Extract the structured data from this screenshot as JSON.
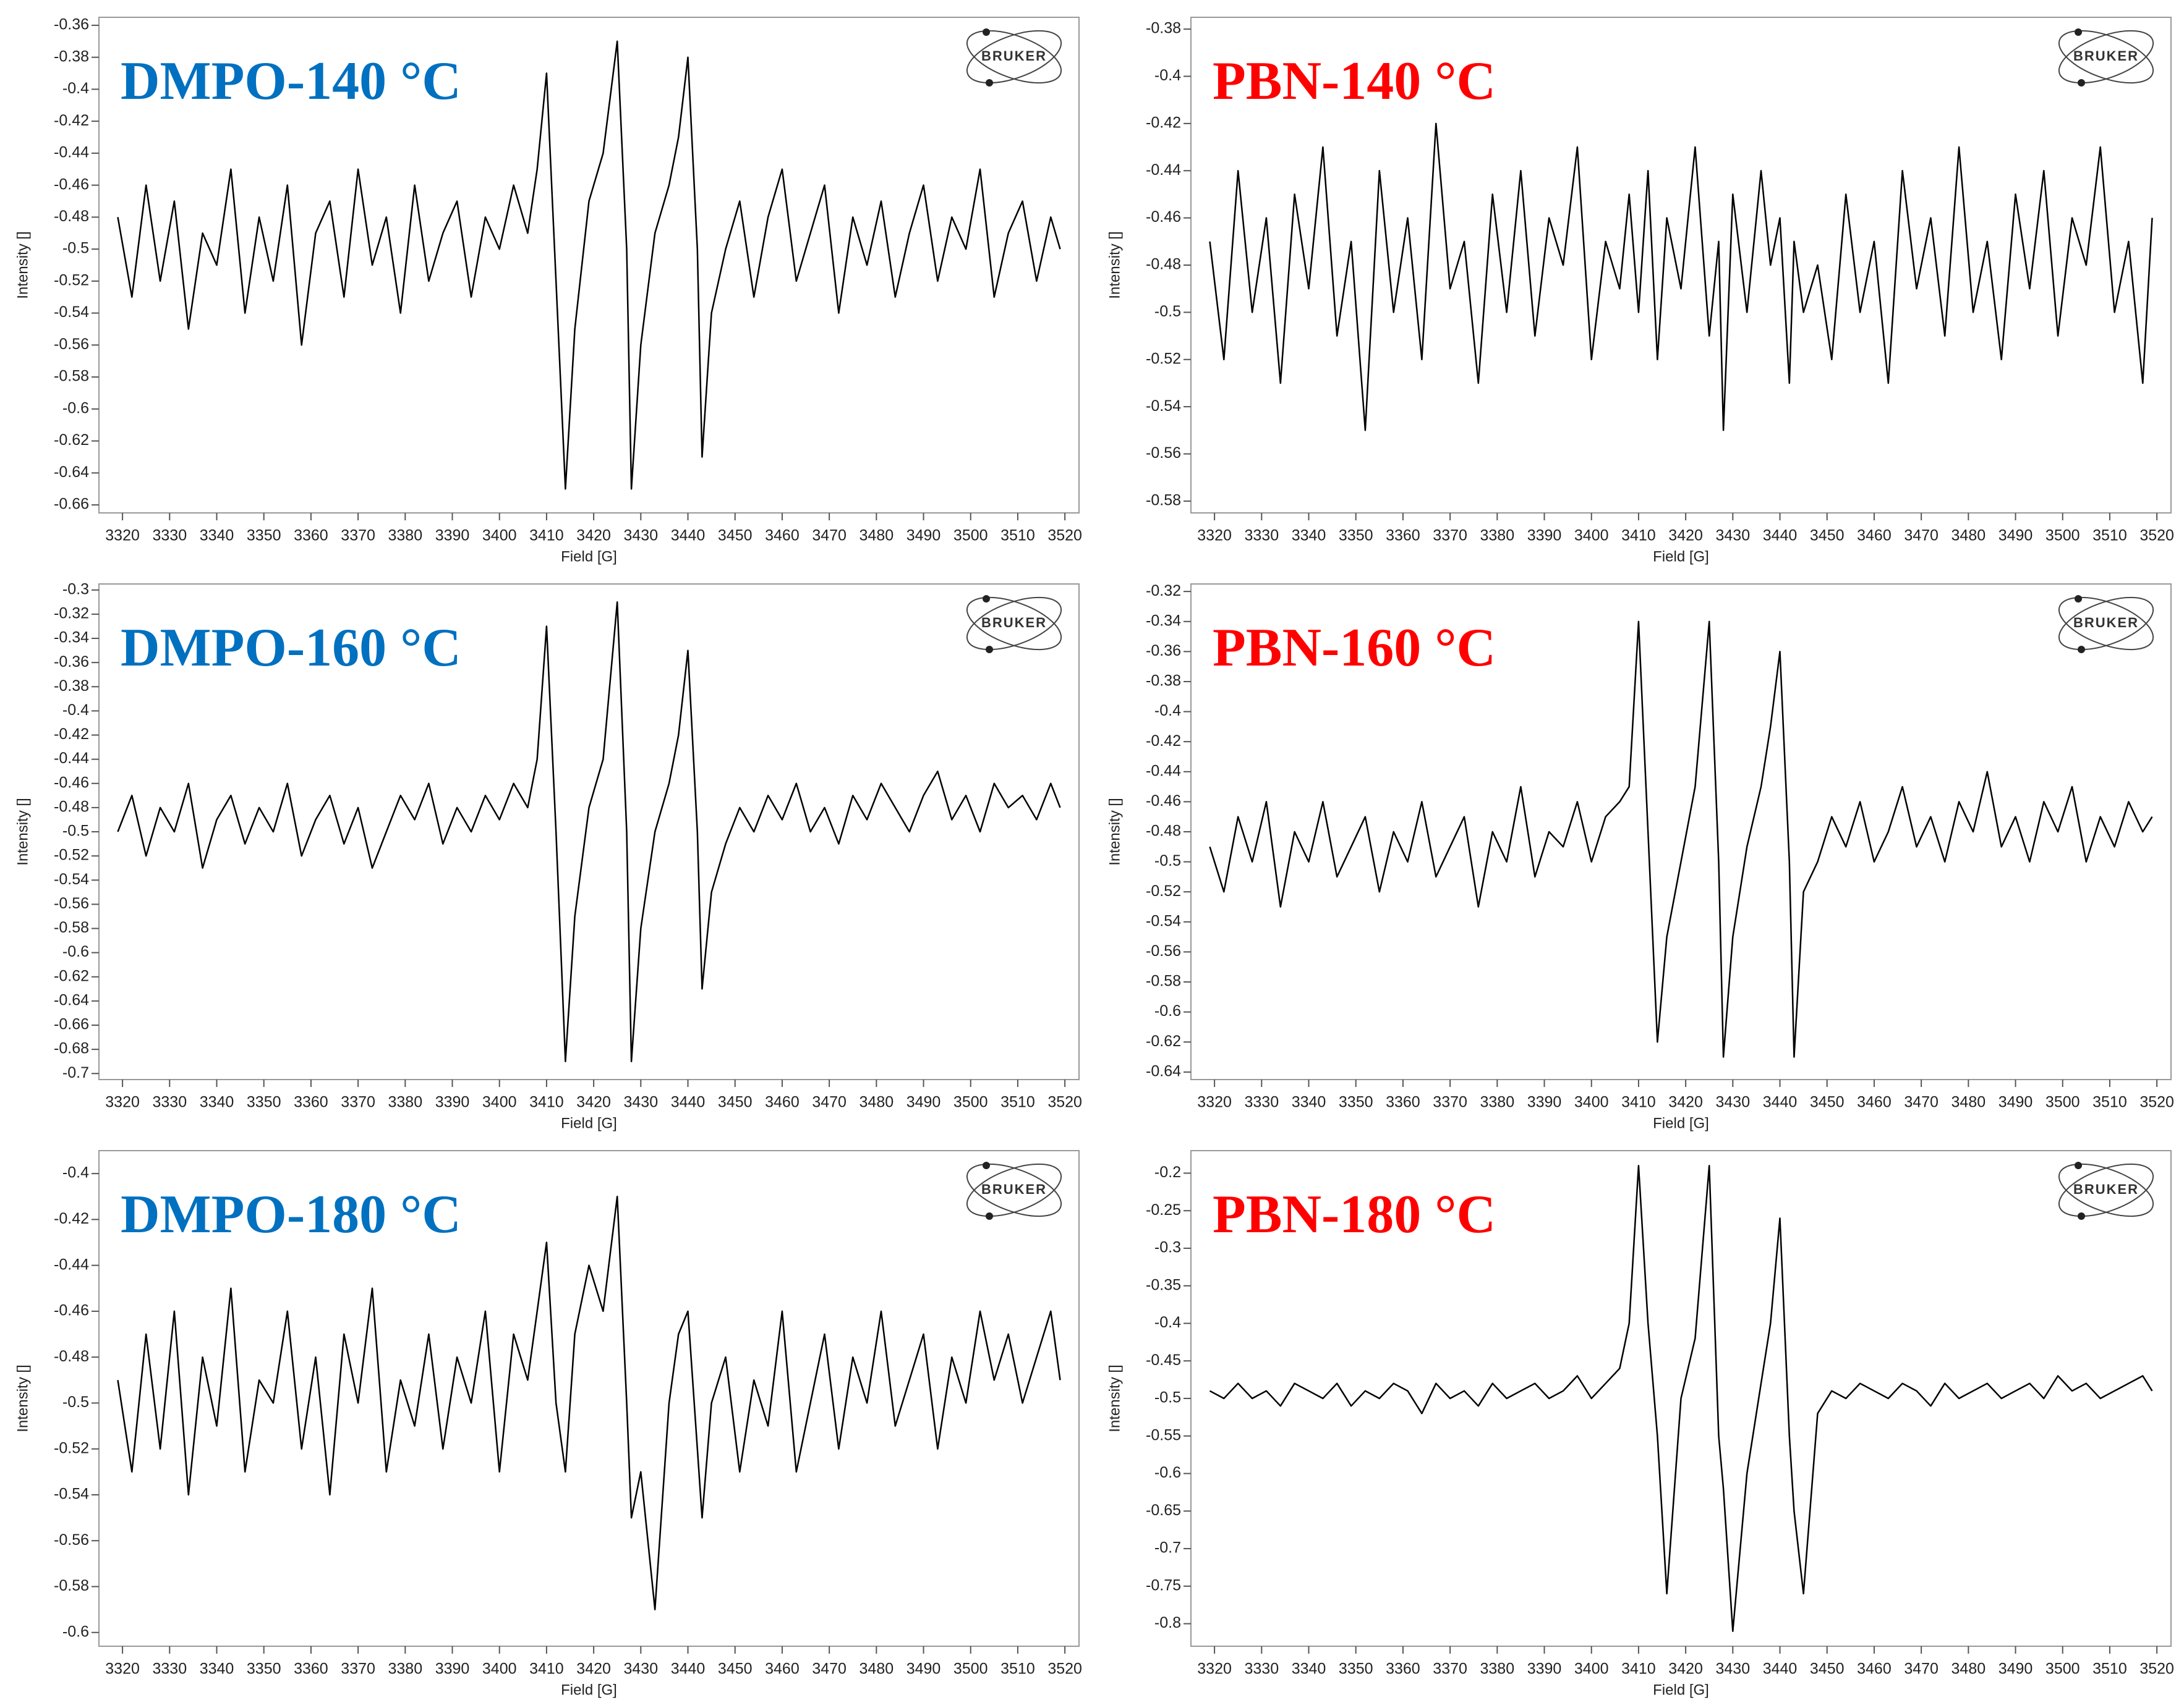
{
  "chart_data": [
    {
      "type": "line",
      "title": "DMPO-140 °C",
      "title_color": "#0070c0",
      "logo": "BRUKER",
      "xlabel": "Field [G]",
      "ylabel": "Intensity []",
      "color": "#000000",
      "x": [
        3319,
        3322,
        3325,
        3328,
        3331,
        3334,
        3337,
        3340,
        3343,
        3346,
        3349,
        3352,
        3355,
        3358,
        3361,
        3364,
        3367,
        3370,
        3373,
        3376,
        3379,
        3382,
        3385,
        3388,
        3391,
        3394,
        3397,
        3400,
        3403,
        3406,
        3408,
        3410,
        3412,
        3414,
        3416,
        3419,
        3422,
        3425,
        3427,
        3428,
        3430,
        3433,
        3436,
        3438,
        3440,
        3442,
        3443,
        3445,
        3448,
        3451,
        3454,
        3457,
        3460,
        3463,
        3466,
        3469,
        3472,
        3475,
        3478,
        3481,
        3484,
        3487,
        3490,
        3493,
        3496,
        3499,
        3502,
        3505,
        3508,
        3511,
        3514,
        3517,
        3519
      ],
      "values": [
        -0.48,
        -0.53,
        -0.46,
        -0.52,
        -0.47,
        -0.55,
        -0.49,
        -0.51,
        -0.45,
        -0.54,
        -0.48,
        -0.52,
        -0.46,
        -0.56,
        -0.49,
        -0.47,
        -0.53,
        -0.45,
        -0.51,
        -0.48,
        -0.54,
        -0.46,
        -0.52,
        -0.49,
        -0.47,
        -0.53,
        -0.48,
        -0.5,
        -0.46,
        -0.49,
        -0.45,
        -0.39,
        -0.52,
        -0.65,
        -0.55,
        -0.47,
        -0.44,
        -0.37,
        -0.5,
        -0.65,
        -0.56,
        -0.49,
        -0.46,
        -0.43,
        -0.38,
        -0.5,
        -0.63,
        -0.54,
        -0.5,
        -0.47,
        -0.53,
        -0.48,
        -0.45,
        -0.52,
        -0.49,
        -0.46,
        -0.54,
        -0.48,
        -0.51,
        -0.47,
        -0.53,
        -0.49,
        -0.46,
        -0.52,
        -0.48,
        -0.5,
        -0.45,
        -0.53,
        -0.49,
        -0.47,
        -0.52,
        -0.48,
        -0.5
      ],
      "xlim": [
        3315,
        3523
      ],
      "xticks": [
        3320,
        3330,
        3340,
        3350,
        3360,
        3370,
        3380,
        3390,
        3400,
        3410,
        3420,
        3430,
        3440,
        3450,
        3460,
        3470,
        3480,
        3490,
        3500,
        3510,
        3520
      ],
      "ylim": [
        -0.665,
        -0.355
      ],
      "yticks": [
        -0.36,
        -0.38,
        -0.4,
        -0.42,
        -0.44,
        -0.46,
        -0.48,
        -0.5,
        -0.52,
        -0.54,
        -0.56,
        -0.58,
        -0.6,
        -0.62,
        -0.64,
        -0.66
      ]
    },
    {
      "type": "line",
      "title": "PBN-140 °C",
      "title_color": "#ff0000",
      "logo": "BRUKER",
      "xlabel": "Field [G]",
      "ylabel": "Intensity []",
      "color": "#000000",
      "x": [
        3319,
        3322,
        3325,
        3328,
        3331,
        3334,
        3337,
        3340,
        3343,
        3346,
        3349,
        3352,
        3355,
        3358,
        3361,
        3364,
        3367,
        3370,
        3373,
        3376,
        3379,
        3382,
        3385,
        3388,
        3391,
        3394,
        3397,
        3400,
        3403,
        3406,
        3408,
        3410,
        3412,
        3414,
        3416,
        3419,
        3422,
        3425,
        3427,
        3428,
        3430,
        3433,
        3436,
        3438,
        3440,
        3442,
        3443,
        3445,
        3448,
        3451,
        3454,
        3457,
        3460,
        3463,
        3466,
        3469,
        3472,
        3475,
        3478,
        3481,
        3484,
        3487,
        3490,
        3493,
        3496,
        3499,
        3502,
        3505,
        3508,
        3511,
        3514,
        3517,
        3519
      ],
      "values": [
        -0.47,
        -0.52,
        -0.44,
        -0.5,
        -0.46,
        -0.53,
        -0.45,
        -0.49,
        -0.43,
        -0.51,
        -0.47,
        -0.55,
        -0.44,
        -0.5,
        -0.46,
        -0.52,
        -0.42,
        -0.49,
        -0.47,
        -0.53,
        -0.45,
        -0.5,
        -0.44,
        -0.51,
        -0.46,
        -0.48,
        -0.43,
        -0.52,
        -0.47,
        -0.49,
        -0.45,
        -0.5,
        -0.44,
        -0.52,
        -0.46,
        -0.49,
        -0.43,
        -0.51,
        -0.47,
        -0.55,
        -0.45,
        -0.5,
        -0.44,
        -0.48,
        -0.46,
        -0.53,
        -0.47,
        -0.5,
        -0.48,
        -0.52,
        -0.45,
        -0.5,
        -0.47,
        -0.53,
        -0.44,
        -0.49,
        -0.46,
        -0.51,
        -0.43,
        -0.5,
        -0.47,
        -0.52,
        -0.45,
        -0.49,
        -0.44,
        -0.51,
        -0.46,
        -0.48,
        -0.43,
        -0.5,
        -0.47,
        -0.53,
        -0.46
      ],
      "xlim": [
        3315,
        3523
      ],
      "xticks": [
        3320,
        3330,
        3340,
        3350,
        3360,
        3370,
        3380,
        3390,
        3400,
        3410,
        3420,
        3430,
        3440,
        3450,
        3460,
        3470,
        3480,
        3490,
        3500,
        3510,
        3520
      ],
      "ylim": [
        -0.585,
        -0.375
      ],
      "yticks": [
        -0.38,
        -0.4,
        -0.42,
        -0.44,
        -0.46,
        -0.48,
        -0.5,
        -0.52,
        -0.54,
        -0.56,
        -0.58
      ]
    },
    {
      "type": "line",
      "title": "DMPO-160 °C",
      "title_color": "#0070c0",
      "logo": "BRUKER",
      "xlabel": "Field [G]",
      "ylabel": "Intensity []",
      "color": "#000000",
      "x": [
        3319,
        3322,
        3325,
        3328,
        3331,
        3334,
        3337,
        3340,
        3343,
        3346,
        3349,
        3352,
        3355,
        3358,
        3361,
        3364,
        3367,
        3370,
        3373,
        3376,
        3379,
        3382,
        3385,
        3388,
        3391,
        3394,
        3397,
        3400,
        3403,
        3406,
        3408,
        3410,
        3412,
        3414,
        3416,
        3419,
        3422,
        3425,
        3427,
        3428,
        3430,
        3433,
        3436,
        3438,
        3440,
        3442,
        3443,
        3445,
        3448,
        3451,
        3454,
        3457,
        3460,
        3463,
        3466,
        3469,
        3472,
        3475,
        3478,
        3481,
        3484,
        3487,
        3490,
        3493,
        3496,
        3499,
        3502,
        3505,
        3508,
        3511,
        3514,
        3517,
        3519
      ],
      "values": [
        -0.5,
        -0.47,
        -0.52,
        -0.48,
        -0.5,
        -0.46,
        -0.53,
        -0.49,
        -0.47,
        -0.51,
        -0.48,
        -0.5,
        -0.46,
        -0.52,
        -0.49,
        -0.47,
        -0.51,
        -0.48,
        -0.53,
        -0.5,
        -0.47,
        -0.49,
        -0.46,
        -0.51,
        -0.48,
        -0.5,
        -0.47,
        -0.49,
        -0.46,
        -0.48,
        -0.44,
        -0.33,
        -0.5,
        -0.69,
        -0.57,
        -0.48,
        -0.44,
        -0.31,
        -0.5,
        -0.69,
        -0.58,
        -0.5,
        -0.46,
        -0.42,
        -0.35,
        -0.5,
        -0.63,
        -0.55,
        -0.51,
        -0.48,
        -0.5,
        -0.47,
        -0.49,
        -0.46,
        -0.5,
        -0.48,
        -0.51,
        -0.47,
        -0.49,
        -0.46,
        -0.48,
        -0.5,
        -0.47,
        -0.45,
        -0.49,
        -0.47,
        -0.5,
        -0.46,
        -0.48,
        -0.47,
        -0.49,
        -0.46,
        -0.48
      ],
      "xlim": [
        3315,
        3523
      ],
      "xticks": [
        3320,
        3330,
        3340,
        3350,
        3360,
        3370,
        3380,
        3390,
        3400,
        3410,
        3420,
        3430,
        3440,
        3450,
        3460,
        3470,
        3480,
        3490,
        3500,
        3510,
        3520
      ],
      "ylim": [
        -0.705,
        -0.295
      ],
      "yticks": [
        -0.3,
        -0.32,
        -0.34,
        -0.36,
        -0.38,
        -0.4,
        -0.42,
        -0.44,
        -0.46,
        -0.48,
        -0.5,
        -0.52,
        -0.54,
        -0.56,
        -0.58,
        -0.6,
        -0.62,
        -0.64,
        -0.66,
        -0.68,
        -0.7
      ]
    },
    {
      "type": "line",
      "title": "PBN-160 °C",
      "title_color": "#ff0000",
      "logo": "BRUKER",
      "xlabel": "Field [G]",
      "ylabel": "Intensity []",
      "color": "#000000",
      "x": [
        3319,
        3322,
        3325,
        3328,
        3331,
        3334,
        3337,
        3340,
        3343,
        3346,
        3349,
        3352,
        3355,
        3358,
        3361,
        3364,
        3367,
        3370,
        3373,
        3376,
        3379,
        3382,
        3385,
        3388,
        3391,
        3394,
        3397,
        3400,
        3403,
        3406,
        3408,
        3410,
        3412,
        3414,
        3416,
        3419,
        3422,
        3425,
        3427,
        3428,
        3430,
        3433,
        3436,
        3438,
        3440,
        3442,
        3443,
        3445,
        3448,
        3451,
        3454,
        3457,
        3460,
        3463,
        3466,
        3469,
        3472,
        3475,
        3478,
        3481,
        3484,
        3487,
        3490,
        3493,
        3496,
        3499,
        3502,
        3505,
        3508,
        3511,
        3514,
        3517,
        3519
      ],
      "values": [
        -0.49,
        -0.52,
        -0.47,
        -0.5,
        -0.46,
        -0.53,
        -0.48,
        -0.5,
        -0.46,
        -0.51,
        -0.49,
        -0.47,
        -0.52,
        -0.48,
        -0.5,
        -0.46,
        -0.51,
        -0.49,
        -0.47,
        -0.53,
        -0.48,
        -0.5,
        -0.45,
        -0.51,
        -0.48,
        -0.49,
        -0.46,
        -0.5,
        -0.47,
        -0.46,
        -0.45,
        -0.34,
        -0.48,
        -0.62,
        -0.55,
        -0.5,
        -0.45,
        -0.34,
        -0.5,
        -0.63,
        -0.55,
        -0.49,
        -0.45,
        -0.41,
        -0.36,
        -0.5,
        -0.63,
        -0.52,
        -0.5,
        -0.47,
        -0.49,
        -0.46,
        -0.5,
        -0.48,
        -0.45,
        -0.49,
        -0.47,
        -0.5,
        -0.46,
        -0.48,
        -0.44,
        -0.49,
        -0.47,
        -0.5,
        -0.46,
        -0.48,
        -0.45,
        -0.5,
        -0.47,
        -0.49,
        -0.46,
        -0.48,
        -0.47
      ],
      "xlim": [
        3315,
        3523
      ],
      "xticks": [
        3320,
        3330,
        3340,
        3350,
        3360,
        3370,
        3380,
        3390,
        3400,
        3410,
        3420,
        3430,
        3440,
        3450,
        3460,
        3470,
        3480,
        3490,
        3500,
        3510,
        3520
      ],
      "ylim": [
        -0.645,
        -0.315
      ],
      "yticks": [
        -0.32,
        -0.34,
        -0.36,
        -0.38,
        -0.4,
        -0.42,
        -0.44,
        -0.46,
        -0.48,
        -0.5,
        -0.52,
        -0.54,
        -0.56,
        -0.58,
        -0.6,
        -0.62,
        -0.64
      ]
    },
    {
      "type": "line",
      "title": "DMPO-180 °C",
      "title_color": "#0070c0",
      "logo": "BRUKER",
      "xlabel": "Field [G]",
      "ylabel": "Intensity []",
      "color": "#000000",
      "x": [
        3319,
        3322,
        3325,
        3328,
        3331,
        3334,
        3337,
        3340,
        3343,
        3346,
        3349,
        3352,
        3355,
        3358,
        3361,
        3364,
        3367,
        3370,
        3373,
        3376,
        3379,
        3382,
        3385,
        3388,
        3391,
        3394,
        3397,
        3400,
        3403,
        3406,
        3408,
        3410,
        3412,
        3414,
        3416,
        3419,
        3422,
        3425,
        3427,
        3428,
        3430,
        3433,
        3436,
        3438,
        3440,
        3442,
        3443,
        3445,
        3448,
        3451,
        3454,
        3457,
        3460,
        3463,
        3466,
        3469,
        3472,
        3475,
        3478,
        3481,
        3484,
        3487,
        3490,
        3493,
        3496,
        3499,
        3502,
        3505,
        3508,
        3511,
        3514,
        3517,
        3519
      ],
      "values": [
        -0.49,
        -0.53,
        -0.47,
        -0.52,
        -0.46,
        -0.54,
        -0.48,
        -0.51,
        -0.45,
        -0.53,
        -0.49,
        -0.5,
        -0.46,
        -0.52,
        -0.48,
        -0.54,
        -0.47,
        -0.5,
        -0.45,
        -0.53,
        -0.49,
        -0.51,
        -0.47,
        -0.52,
        -0.48,
        -0.5,
        -0.46,
        -0.53,
        -0.47,
        -0.49,
        -0.46,
        -0.43,
        -0.5,
        -0.53,
        -0.47,
        -0.44,
        -0.46,
        -0.41,
        -0.5,
        -0.55,
        -0.53,
        -0.59,
        -0.5,
        -0.47,
        -0.46,
        -0.52,
        -0.55,
        -0.5,
        -0.48,
        -0.53,
        -0.49,
        -0.51,
        -0.46,
        -0.53,
        -0.5,
        -0.47,
        -0.52,
        -0.48,
        -0.5,
        -0.46,
        -0.51,
        -0.49,
        -0.47,
        -0.52,
        -0.48,
        -0.5,
        -0.46,
        -0.49,
        -0.47,
        -0.5,
        -0.48,
        -0.46,
        -0.49
      ],
      "xlim": [
        3315,
        3523
      ],
      "xticks": [
        3320,
        3330,
        3340,
        3350,
        3360,
        3370,
        3380,
        3390,
        3400,
        3410,
        3420,
        3430,
        3440,
        3450,
        3460,
        3470,
        3480,
        3490,
        3500,
        3510,
        3520
      ],
      "ylim": [
        -0.606,
        -0.39
      ],
      "yticks": [
        -0.4,
        -0.42,
        -0.44,
        -0.46,
        -0.48,
        -0.5,
        -0.52,
        -0.54,
        -0.56,
        -0.58,
        -0.6
      ]
    },
    {
      "type": "line",
      "title": "PBN-180 °C",
      "title_color": "#ff0000",
      "logo": "BRUKER",
      "xlabel": "Field [G]",
      "ylabel": "Intensity []",
      "color": "#000000",
      "x": [
        3319,
        3322,
        3325,
        3328,
        3331,
        3334,
        3337,
        3340,
        3343,
        3346,
        3349,
        3352,
        3355,
        3358,
        3361,
        3364,
        3367,
        3370,
        3373,
        3376,
        3379,
        3382,
        3385,
        3388,
        3391,
        3394,
        3397,
        3400,
        3403,
        3406,
        3408,
        3410,
        3412,
        3414,
        3416,
        3419,
        3422,
        3425,
        3427,
        3428,
        3430,
        3433,
        3436,
        3438,
        3440,
        3442,
        3443,
        3445,
        3448,
        3451,
        3454,
        3457,
        3460,
        3463,
        3466,
        3469,
        3472,
        3475,
        3478,
        3481,
        3484,
        3487,
        3490,
        3493,
        3496,
        3499,
        3502,
        3505,
        3508,
        3511,
        3514,
        3517,
        3519
      ],
      "values": [
        -0.49,
        -0.5,
        -0.48,
        -0.5,
        -0.49,
        -0.51,
        -0.48,
        -0.49,
        -0.5,
        -0.48,
        -0.51,
        -0.49,
        -0.5,
        -0.48,
        -0.49,
        -0.52,
        -0.48,
        -0.5,
        -0.49,
        -0.51,
        -0.48,
        -0.5,
        -0.49,
        -0.48,
        -0.5,
        -0.49,
        -0.47,
        -0.5,
        -0.48,
        -0.46,
        -0.4,
        -0.19,
        -0.4,
        -0.55,
        -0.76,
        -0.5,
        -0.42,
        -0.19,
        -0.55,
        -0.62,
        -0.81,
        -0.6,
        -0.48,
        -0.4,
        -0.26,
        -0.55,
        -0.65,
        -0.76,
        -0.52,
        -0.49,
        -0.5,
        -0.48,
        -0.49,
        -0.5,
        -0.48,
        -0.49,
        -0.51,
        -0.48,
        -0.5,
        -0.49,
        -0.48,
        -0.5,
        -0.49,
        -0.48,
        -0.5,
        -0.47,
        -0.49,
        -0.48,
        -0.5,
        -0.49,
        -0.48,
        -0.47,
        -0.49
      ],
      "xlim": [
        3315,
        3523
      ],
      "xticks": [
        3320,
        3330,
        3340,
        3350,
        3360,
        3370,
        3380,
        3390,
        3400,
        3410,
        3420,
        3430,
        3440,
        3450,
        3460,
        3470,
        3480,
        3490,
        3500,
        3510,
        3520
      ],
      "ylim": [
        -0.83,
        -0.17
      ],
      "yticks": [
        -0.2,
        -0.25,
        -0.3,
        -0.35,
        -0.4,
        -0.45,
        -0.5,
        -0.55,
        -0.6,
        -0.65,
        -0.7,
        -0.75,
        -0.8
      ]
    }
  ]
}
